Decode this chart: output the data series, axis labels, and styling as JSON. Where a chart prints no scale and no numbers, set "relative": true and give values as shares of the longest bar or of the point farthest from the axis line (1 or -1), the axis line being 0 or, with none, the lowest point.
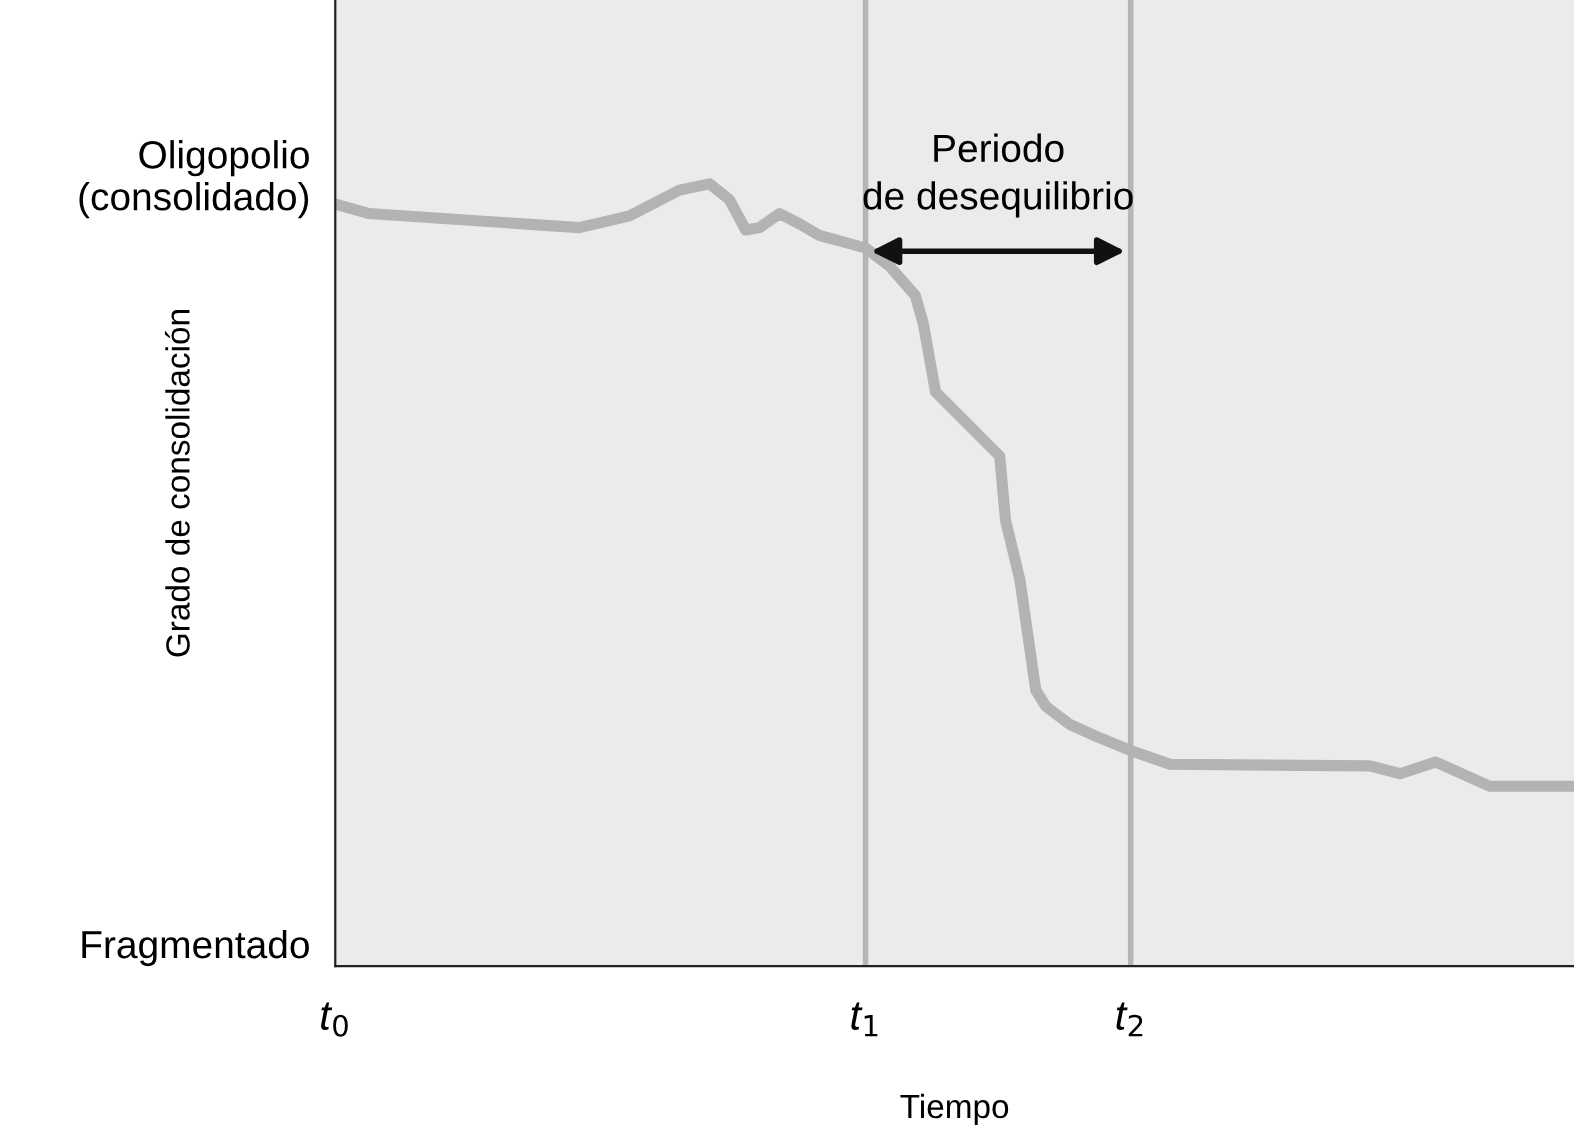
{
  "chart_data": {
    "type": "line",
    "relative": true,
    "xlabel": "Tiempo",
    "ylabel": "Grado de consolidación",
    "annotations": [
      "Oligopolio\n(consolidado)",
      "Fragmentado",
      "Periodo\nde desequilibrio"
    ],
    "xlim": [
      0,
      2.336
    ],
    "xticks": [
      {
        "value": 0,
        "label": "t$_{0}$"
      },
      {
        "value": 1,
        "label": "t$_{1}$"
      },
      {
        "value": 1.5,
        "label": "t$_{2}$"
      }
    ],
    "ref_lines": [
      {
        "axis": "x",
        "value": 1,
        "label": null,
        "color": "#b5b5b5"
      },
      {
        "axis": "x",
        "value": 1.5,
        "label": null,
        "color": "#b5b5b5"
      }
    ],
    "series": [
      {
        "color": "#b3b3b3",
        "x": [
          0,
          0.064,
          0.46,
          0.555,
          0.649,
          0.706,
          0.743,
          0.774,
          0.8,
          0.838,
          0.875,
          0.913,
          1.0,
          1.045,
          1.094,
          1.109,
          1.132,
          1.253,
          1.264,
          1.291,
          1.321,
          1.34,
          1.385,
          1.434,
          1.498,
          1.574,
          1.951,
          2.008,
          2.075,
          2.177,
          2.336
        ],
        "values": [
          0.974,
          0.962,
          0.944,
          0.959,
          0.992,
          1.0,
          0.98,
          0.941,
          0.944,
          0.962,
          0.949,
          0.934,
          0.918,
          0.895,
          0.857,
          0.821,
          0.734,
          0.652,
          0.57,
          0.494,
          0.353,
          0.332,
          0.309,
          0.294,
          0.276,
          0.258,
          0.256,
          0.246,
          0.261,
          0.23,
          0.23
        ]
      }
    ],
    "grid": false,
    "marker": "none",
    "line_style": "solid"
  }
}
